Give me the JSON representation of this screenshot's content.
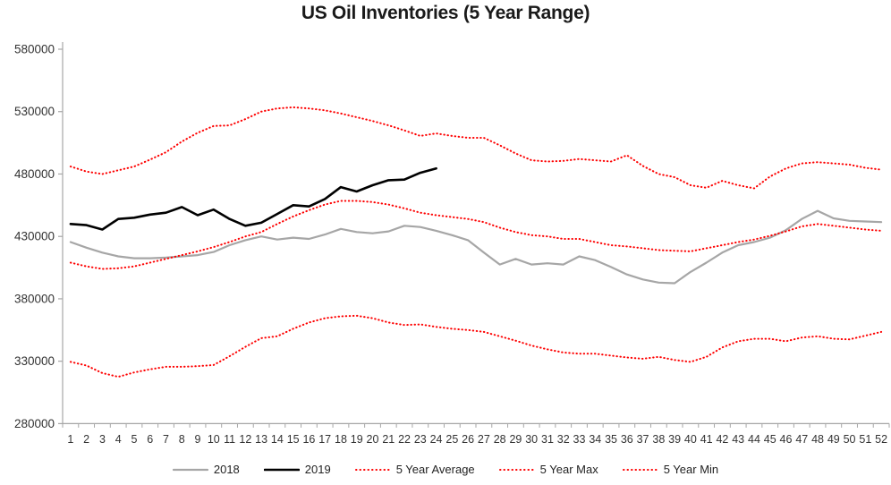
{
  "chart_data": {
    "type": "line",
    "title": "US Oil Inventories (5 Year Range)",
    "xlabel": "",
    "ylabel": "",
    "ylim": [
      280000,
      580000
    ],
    "ytick_step": 50000,
    "y_ticks": [
      280000,
      330000,
      380000,
      430000,
      480000,
      530000,
      580000
    ],
    "grid": false,
    "legend_position": "bottom",
    "axis_color": "#a6a6a6",
    "tick_label_color": "#333333",
    "categories": [
      "1",
      "2",
      "3",
      "4",
      "5",
      "6",
      "7",
      "8",
      "9",
      "10",
      "11",
      "12",
      "13",
      "14",
      "15",
      "16",
      "17",
      "18",
      "19",
      "20",
      "21",
      "22",
      "23",
      "24",
      "25",
      "26",
      "27",
      "28",
      "29",
      "30",
      "31",
      "32",
      "33",
      "34",
      "35",
      "36",
      "37",
      "38",
      "39",
      "40",
      "41",
      "42",
      "43",
      "44",
      "45",
      "46",
      "47",
      "48",
      "49",
      "50",
      "51",
      "52"
    ],
    "series": [
      {
        "name": "2018",
        "color": "#a6a6a6",
        "style": "solid",
        "width": 2.2,
        "values": [
          425500,
          421000,
          417000,
          414000,
          412500,
          412500,
          413000,
          414000,
          415000,
          417500,
          423000,
          427000,
          430000,
          427500,
          429000,
          428000,
          431500,
          436000,
          433500,
          432500,
          434000,
          438500,
          437500,
          434500,
          431000,
          427000,
          417000,
          407500,
          412000,
          407500,
          408500,
          407500,
          414000,
          411000,
          405500,
          399500,
          395500,
          393000,
          392500,
          401500,
          409000,
          417000,
          423000,
          425500,
          429000,
          435000,
          444000,
          450500,
          444500,
          442500,
          442000,
          441500
        ]
      },
      {
        "name": "2019",
        "color": "#000000",
        "style": "solid",
        "width": 2.6,
        "values": [
          440000,
          439000,
          435500,
          444000,
          445000,
          447500,
          449000,
          453500,
          447000,
          451500,
          444000,
          438500,
          441000,
          448000,
          455000,
          454000,
          460000,
          469500,
          466000,
          471000,
          475000,
          475500,
          481000,
          484500
        ]
      },
      {
        "name": "5 Year Average",
        "color": "#fe0000",
        "style": "dotted",
        "width": 2,
        "values": [
          409000,
          406000,
          404000,
          404500,
          406000,
          409000,
          412000,
          415000,
          418000,
          421500,
          425500,
          430000,
          433500,
          440000,
          446000,
          451000,
          455500,
          458500,
          458500,
          457500,
          455500,
          452500,
          449000,
          447000,
          445500,
          444000,
          441500,
          437000,
          433500,
          431000,
          430000,
          428000,
          428000,
          425500,
          423000,
          422000,
          420500,
          419000,
          418500,
          418000,
          420500,
          423000,
          425500,
          427500,
          430500,
          434000,
          438000,
          440000,
          438500,
          437000,
          435500,
          434500
        ]
      },
      {
        "name": "5 Year Max",
        "color": "#fe0000",
        "style": "dotted",
        "width": 2,
        "values": [
          486000,
          482000,
          480000,
          483000,
          486000,
          491500,
          497500,
          506000,
          513000,
          518500,
          519000,
          524000,
          530000,
          532500,
          533500,
          532500,
          531000,
          528500,
          525500,
          522500,
          519000,
          515000,
          510500,
          512500,
          510500,
          509000,
          509000,
          503000,
          496500,
          491000,
          490000,
          490500,
          492000,
          491000,
          490000,
          495000,
          486500,
          480000,
          477500,
          471000,
          469000,
          474500,
          471000,
          468500,
          478000,
          484500,
          488500,
          489500,
          488500,
          487500,
          485000,
          483500
        ]
      },
      {
        "name": "5 Year Min",
        "color": "#fe0000",
        "style": "dotted",
        "width": 2,
        "values": [
          329500,
          326500,
          320500,
          317500,
          321000,
          323500,
          325500,
          325500,
          326000,
          327000,
          334000,
          341500,
          348500,
          350000,
          356000,
          361000,
          364500,
          366000,
          366500,
          364500,
          361000,
          359000,
          359500,
          357500,
          356000,
          355000,
          353500,
          350000,
          346500,
          342500,
          339500,
          337000,
          336000,
          336000,
          334500,
          333000,
          332000,
          333500,
          331000,
          329500,
          333500,
          341000,
          346000,
          348000,
          348000,
          346000,
          349000,
          350000,
          348000,
          347500,
          350500,
          353500
        ]
      }
    ]
  }
}
